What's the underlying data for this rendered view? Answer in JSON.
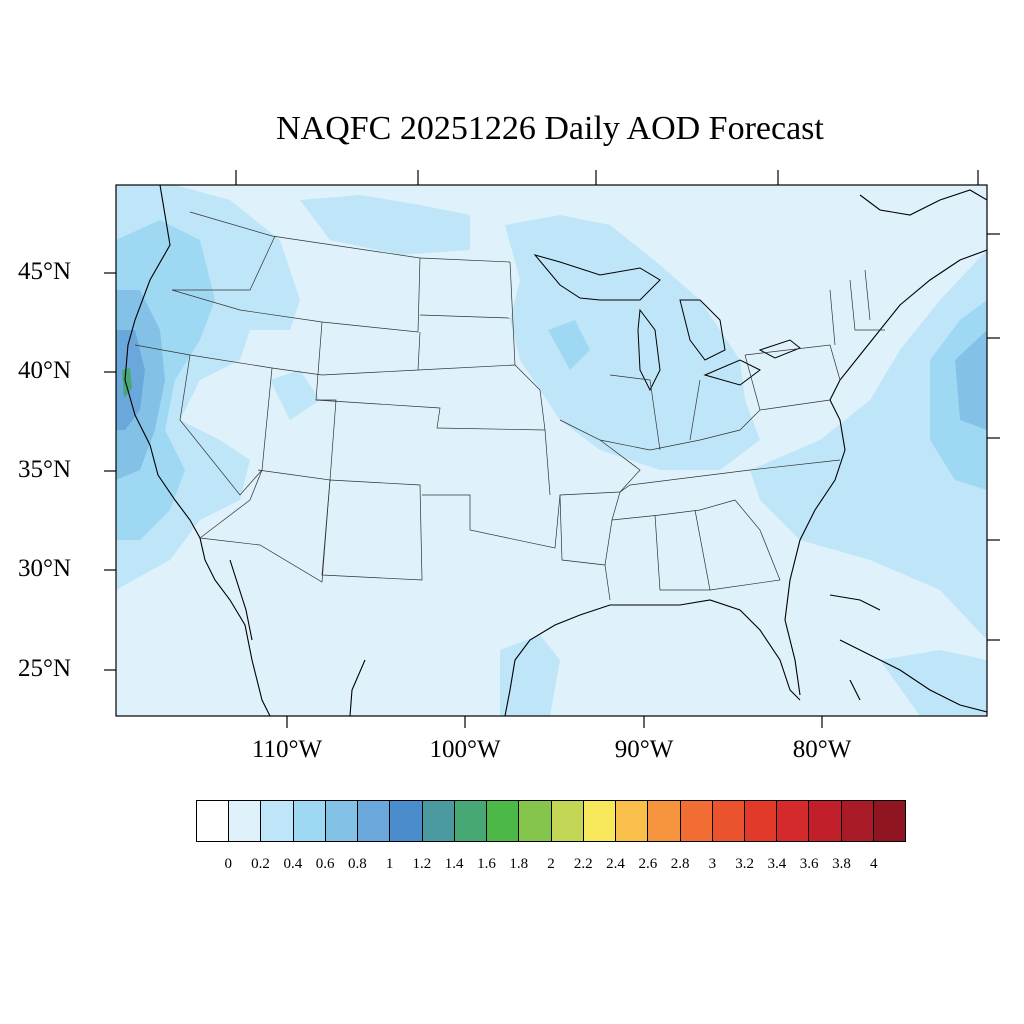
{
  "title": "NAQFC 20251226 Daily AOD Forecast",
  "latitude_labels": [
    "45°N",
    "40°N",
    "35°N",
    "30°N",
    "25°N"
  ],
  "longitude_labels": [
    "110°W",
    "100°W",
    "90°W",
    "80°W"
  ],
  "colorbar": {
    "labels": [
      "0",
      "0.2",
      "0.4",
      "0.6",
      "0.8",
      "1",
      "1.2",
      "1.4",
      "1.6",
      "1.8",
      "2",
      "2.2",
      "2.4",
      "2.6",
      "2.8",
      "3",
      "3.2",
      "3.4",
      "3.6",
      "3.8",
      "4"
    ],
    "colors": [
      "#ffffff",
      "#dff1fa",
      "#bfe6f8",
      "#9fd8f3",
      "#83c1e6",
      "#6aa8dc",
      "#4b8ccc",
      "#4a9aa0",
      "#48a875",
      "#4cb848",
      "#86c54c",
      "#c4d656",
      "#f7e75b",
      "#f8c04a",
      "#f7953f",
      "#f26d33",
      "#ea532e",
      "#e1392a",
      "#d42a2b",
      "#c11f2a",
      "#a91b26",
      "#8f1520"
    ]
  },
  "map_colors": {
    "background": "#dff1fa",
    "level_0_4": "#bfe6f8",
    "level_0_6": "#9fd8f3",
    "level_0_8": "#83c1e6",
    "level_1": "#6aa8dc",
    "level_1_6": "#48a875",
    "lines": "#000000"
  }
}
